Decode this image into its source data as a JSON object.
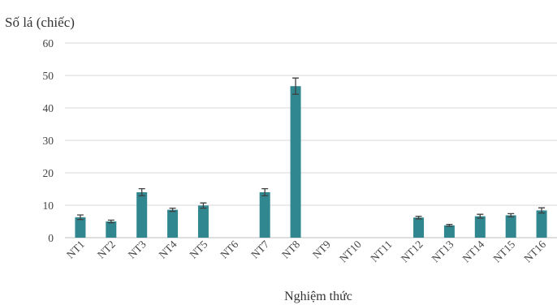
{
  "chart_data": {
    "type": "bar",
    "title": "",
    "ylabel": "Số lá (chiếc)",
    "xlabel": "Nghiệm thức",
    "ylim": [
      0,
      60
    ],
    "yticks": [
      0,
      10,
      20,
      30,
      40,
      50,
      60
    ],
    "grid": true,
    "categories": [
      "NT1",
      "NT2",
      "NT3",
      "NT4",
      "NT5",
      "NT6",
      "NT7",
      "NT8",
      "NT9",
      "NT10",
      "NT11",
      "NT12",
      "NT13",
      "NT14",
      "NT15",
      "NT16"
    ],
    "values": [
      6.3,
      5.0,
      14.0,
      8.6,
      9.9,
      0,
      14.0,
      46.7,
      0,
      0,
      0,
      6.2,
      3.8,
      6.6,
      6.9,
      8.4
    ],
    "errors": [
      0.7,
      0.4,
      1.1,
      0.5,
      0.8,
      0,
      1.1,
      2.5,
      0,
      0,
      0,
      0.4,
      0.3,
      0.6,
      0.5,
      0.8
    ],
    "bar_color": "#31878f"
  }
}
